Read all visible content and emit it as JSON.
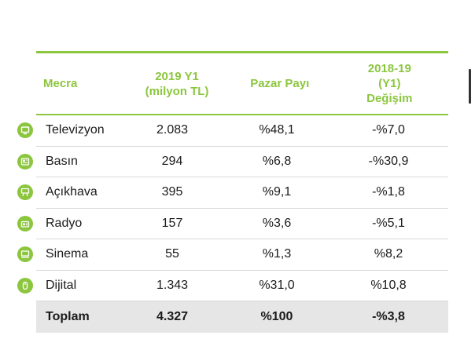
{
  "header": {
    "col1": "Mecra",
    "col2_line1": "2019 Y1",
    "col2_line2": "(milyon TL)",
    "col3": "Pazar Payı",
    "col4_line1": "2018-19",
    "col4_line2": "(Y1)",
    "col4_line3": "Değişim"
  },
  "rows": [
    {
      "icon": "tv-icon",
      "media": "Televizyon",
      "value": "2.083",
      "share": "%48,1",
      "change": "-%7,0"
    },
    {
      "icon": "newspaper-icon",
      "media": "Basın",
      "value": "294",
      "share": "%6,8",
      "change": "-%30,9"
    },
    {
      "icon": "billboard-icon",
      "media": "Açıkhava",
      "value": "395",
      "share": "%9,1",
      "change": "-%1,8"
    },
    {
      "icon": "radio-icon",
      "media": "Radyo",
      "value": "157",
      "share": "%3,6",
      "change": "-%5,1"
    },
    {
      "icon": "cinema-icon",
      "media": "Sinema",
      "value": "55",
      "share": "%1,3",
      "change": "%8,2"
    },
    {
      "icon": "mouse-icon",
      "media": "Dijital",
      "value": "1.343",
      "share": "%31,0",
      "change": "%10,8"
    }
  ],
  "total": {
    "label": "Toplam",
    "value": "4.327",
    "share": "%100",
    "change": "-%3,8"
  },
  "colors": {
    "accent": "#8cc63f",
    "total_bg": "#e6e6e6"
  }
}
